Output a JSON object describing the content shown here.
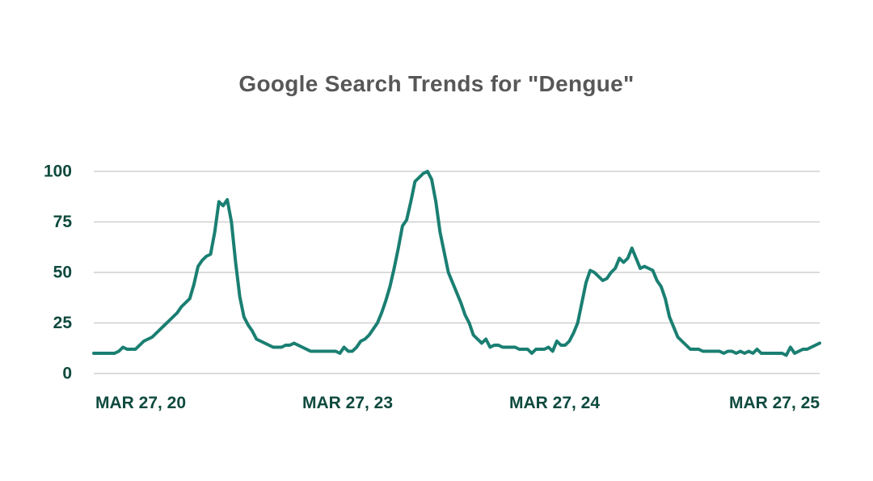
{
  "chart_data": {
    "type": "line",
    "title": "Google Search Trends for \"Dengue\"",
    "xlabel": "",
    "ylabel": "",
    "ylim": [
      0,
      100
    ],
    "yticks": [
      0,
      25,
      50,
      75,
      100
    ],
    "ytick_labels": [
      "0",
      "25",
      "50",
      "75",
      "100"
    ],
    "xtick_labels": [
      "MAR 27, 20",
      "MAR 27, 23",
      "MAR 27, 24",
      "MAR 27, 25"
    ],
    "grid": true,
    "legend": "none",
    "series": [
      {
        "values": [
          10,
          10,
          10,
          10,
          10,
          10,
          11,
          13,
          12,
          12,
          12,
          14,
          16,
          17,
          18,
          20,
          22,
          24,
          26,
          28,
          30,
          33,
          35,
          37,
          44,
          53,
          56,
          58,
          59,
          70,
          85,
          83,
          86,
          75,
          55,
          38,
          28,
          24,
          21,
          17,
          16,
          15,
          14,
          13,
          13,
          13,
          14,
          14,
          15,
          14,
          13,
          12,
          11,
          11,
          11,
          11,
          11,
          11,
          11,
          10,
          13,
          11,
          11,
          13,
          16,
          17,
          19,
          22,
          25,
          30,
          36,
          43,
          52,
          62,
          73,
          76,
          85,
          95,
          97,
          99,
          100,
          96,
          85,
          70,
          60,
          50,
          45,
          40,
          35,
          29,
          25,
          19,
          17,
          15,
          17,
          13,
          14,
          14,
          13,
          13,
          13,
          13,
          12,
          12,
          12,
          10,
          12,
          12,
          12,
          13,
          11,
          16,
          14,
          14,
          16,
          20,
          25,
          35,
          45,
          51,
          50,
          48,
          46,
          47,
          50,
          52,
          57,
          55,
          57,
          62,
          57,
          52,
          53,
          52,
          51,
          46,
          43,
          37,
          28,
          23,
          18,
          16,
          14,
          12,
          12,
          12,
          11,
          11,
          11,
          11,
          11,
          10,
          11,
          11,
          10,
          11,
          10,
          11,
          10,
          12,
          10,
          10,
          10,
          10,
          10,
          10,
          9,
          13,
          10,
          11,
          12,
          12,
          13,
          14,
          15
        ]
      }
    ]
  },
  "colors": {
    "line": "#1a7f72",
    "axis_text": "#0f4a3e",
    "title": "#575757",
    "grid": "#cfcfcf"
  }
}
